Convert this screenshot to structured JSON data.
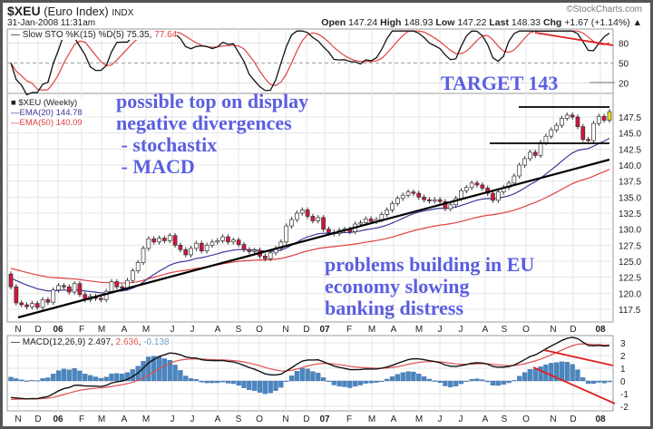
{
  "header": {
    "symbol": "$XEU",
    "name": "(Euro Index)",
    "exchange": "INDX",
    "datetime": "31-Jan-2008 11:31am",
    "copyright": "©StockCharts.com",
    "quote": {
      "open_label": "Open",
      "open": "147.24",
      "high_label": "High",
      "high": "148.93",
      "low_label": "Low",
      "low": "147.22",
      "last_label": "Last",
      "last": "148.33",
      "chg_label": "Chg",
      "chg": "+1.67 (+1.14%)",
      "arrow": "▲"
    }
  },
  "annotations": {
    "top": [
      "possible top on display",
      "negative divergences",
      " - stochastix",
      " - MACD"
    ],
    "target": "TARGET 143",
    "bottom": [
      "problems building in EU",
      "economy slowing",
      "banking distress"
    ]
  },
  "chart_data": [
    {
      "type": "line",
      "panel": "stochastic",
      "legend": "Slow STO %K(15) %D(5)",
      "values_shown": [
        "75.35",
        "77.64"
      ],
      "ylim": [
        0,
        100
      ],
      "yticks": [
        "80",
        "50",
        "20"
      ]
    },
    {
      "type": "candlestick",
      "panel": "price",
      "legend": "$XEU (Weekly)",
      "ema": [
        {
          "name": "EMA(20)",
          "value": "144.78",
          "color": "#3a3a9a"
        },
        {
          "name": "EMA(50)",
          "value": "140.09",
          "color": "#e04040"
        }
      ],
      "start_week": "2005-11-07",
      "frequency": "weekly",
      "close": [
        121.0,
        118.5,
        118.2,
        117.9,
        118.4,
        117.8,
        119.0,
        118.6,
        120.5,
        121.2,
        121.0,
        120.2,
        121.5,
        119.8,
        119.0,
        119.5,
        119.2,
        119.0,
        120.3,
        121.8,
        121.0,
        120.8,
        122.0,
        123.5,
        124.8,
        127.0,
        128.5,
        128.0,
        128.6,
        128.2,
        129.0,
        127.5,
        126.8,
        126.0,
        127.0,
        127.8,
        126.6,
        127.5,
        128.0,
        128.2,
        128.8,
        128.0,
        128.3,
        127.6,
        126.8,
        126.5,
        126.7,
        125.8,
        125.4,
        126.3,
        127.0,
        128.0,
        130.5,
        131.5,
        132.5,
        133.0,
        132.0,
        131.3,
        131.8,
        130.0,
        129.5,
        129.3,
        129.8,
        130.0,
        129.6,
        130.8,
        131.0,
        131.6,
        131.2,
        131.5,
        132.3,
        133.0,
        134.0,
        134.8,
        135.3,
        135.8,
        135.6,
        135.0,
        134.6,
        134.4,
        134.6,
        134.3,
        133.2,
        133.8,
        134.8,
        136.0,
        136.5,
        137.2,
        136.9,
        136.4,
        135.6,
        134.5,
        135.8,
        136.5,
        137.2,
        138.3,
        140.0,
        141.0,
        142.0,
        141.5,
        143.5,
        144.5,
        145.5,
        146.2,
        147.3,
        147.8,
        147.5,
        146.0,
        144.0,
        143.8,
        146.5,
        147.6,
        147.0,
        148.33
      ],
      "ylim": [
        117.5,
        147.5
      ],
      "yticks": [
        "147.5",
        "145.0",
        "142.5",
        "140.0",
        "137.5",
        "135.0",
        "132.5",
        "130.0",
        "127.5",
        "125.0",
        "122.5",
        "120.0",
        "117.5"
      ],
      "colors": {
        "up": "#ffffff",
        "down": "#d8143c",
        "latest": "#f0e020"
      }
    },
    {
      "type": "line+histogram",
      "panel": "macd",
      "legend": "MACD(12,26,9)",
      "values_shown": [
        "2.497",
        "2.636",
        "-0.138"
      ],
      "ylim": [
        -2.5,
        3.5
      ],
      "yticks": [
        "3",
        "2",
        "1",
        "0",
        "-1",
        "-2"
      ],
      "colors": {
        "macd": "#111111",
        "signal": "#e05050",
        "histogram": "#4a86c0"
      }
    }
  ],
  "xaxis": {
    "labels": [
      "N",
      "D",
      "06",
      "F",
      "M",
      "A",
      "M",
      "J",
      "J",
      "A",
      "S",
      "O",
      "N",
      "D",
      "07",
      "F",
      "M",
      "A",
      "M",
      "J",
      "J",
      "A",
      "S",
      "O",
      "N",
      "D",
      "08"
    ],
    "bold": [
      "06",
      "07",
      "08"
    ]
  }
}
